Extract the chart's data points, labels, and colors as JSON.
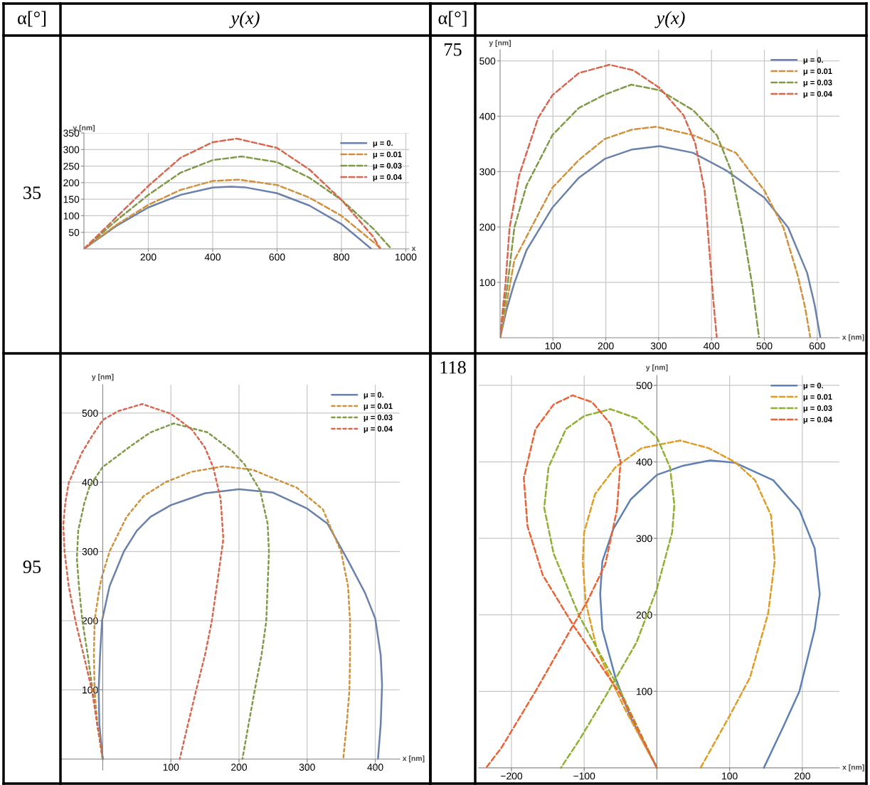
{
  "chart_data": [
    {
      "type": "line",
      "xlabel": "x",
      "ylabel": "y [nm]",
      "annotations": [
        "α[°]",
        "y(x)",
        "35"
      ],
      "xlim": [
        0,
        1010
      ],
      "ylim": [
        0,
        350
      ],
      "xticks": [
        200,
        400,
        600,
        800,
        1000
      ],
      "yticks": [
        50,
        100,
        150,
        200,
        250,
        300,
        350
      ],
      "grid": true,
      "legend": "top right",
      "series": [
        {
          "name": "μ = 0.",
          "color": "#6a82ab",
          "line_style": "solid",
          "x": [
            0,
            100,
            200,
            300,
            400,
            456,
            500,
            600,
            700,
            800,
            893
          ],
          "values": [
            0,
            69,
            125,
            163,
            185,
            188,
            186,
            168,
            131,
            75,
            0
          ]
        },
        {
          "name": "μ = 0.01",
          "color": "#d0913c",
          "line_style": "dashed",
          "x": [
            0,
            100,
            200,
            300,
            400,
            480,
            600,
            700,
            800,
            925
          ],
          "values": [
            0,
            72,
            133,
            178,
            205,
            209,
            193,
            155,
            100,
            0
          ]
        },
        {
          "name": "μ = 0.03",
          "color": "#7f9a48",
          "line_style": "dashed",
          "x": [
            0,
            100,
            200,
            300,
            400,
            490,
            600,
            700,
            800,
            900,
            955
          ],
          "values": [
            0,
            85,
            163,
            230,
            268,
            279,
            262,
            215,
            148,
            60,
            0
          ]
        },
        {
          "name": "μ = 0.04",
          "color": "#d9664f",
          "line_style": "dashed",
          "x": [
            0,
            100,
            200,
            300,
            400,
            475,
            600,
            700,
            800,
            900,
            920
          ],
          "values": [
            0,
            95,
            190,
            275,
            322,
            333,
            305,
            240,
            148,
            35,
            0
          ]
        }
      ]
    },
    {
      "type": "line",
      "xlabel": "x [nm]",
      "ylabel": "y [nm]",
      "annotations": [
        "α[°]",
        "y(x)",
        "75"
      ],
      "xlim": [
        0,
        642
      ],
      "ylim": [
        0,
        520
      ],
      "xticks": [
        100,
        200,
        300,
        400,
        500,
        600
      ],
      "yticks": [
        100,
        200,
        300,
        400,
        500
      ],
      "grid": true,
      "legend": "top right",
      "series": [
        {
          "name": "μ = 0.",
          "color": "#6a82ab",
          "line_style": "solid",
          "x": [
            0,
            12,
            27,
            50,
            99,
            149,
            198,
            250,
            302,
            365,
            428,
            500,
            545,
            581,
            595,
            606
          ],
          "values": [
            0,
            50,
            99,
            158,
            235,
            289,
            323,
            340,
            346,
            334,
            302,
            253,
            199,
            117,
            60,
            0
          ]
        },
        {
          "name": "μ = 0.01",
          "color": "#d0913c",
          "line_style": "dashed",
          "x": [
            0,
            10,
            27,
            59,
            99,
            149,
            198,
            250,
            295,
            365,
            446,
            500,
            536,
            563,
            577,
            587
          ],
          "values": [
            0,
            50,
            140,
            199,
            271,
            321,
            359,
            376,
            381,
            366,
            334,
            266,
            199,
            113,
            55,
            0
          ]
        },
        {
          "name": "μ = 0.03",
          "color": "#7f9a48",
          "line_style": "dashed",
          "x": [
            0,
            7,
            14,
            27,
            50,
            99,
            149,
            198,
            248,
            302,
            365,
            410,
            437,
            459,
            477,
            490
          ],
          "values": [
            0,
            50,
            95,
            199,
            275,
            366,
            415,
            439,
            457,
            447,
            411,
            366,
            302,
            199,
            95,
            0
          ]
        },
        {
          "name": "μ = 0.04",
          "color": "#d9664f",
          "line_style": "dashed",
          "x": [
            0,
            5,
            10,
            18,
            36,
            72,
            99,
            149,
            207,
            252,
            302,
            347,
            369,
            387,
            396,
            403,
            410
          ],
          "values": [
            0,
            50,
            95,
            199,
            293,
            397,
            438,
            478,
            493,
            483,
            451,
            402,
            352,
            266,
            158,
            72,
            0
          ]
        }
      ]
    },
    {
      "type": "line",
      "xlabel": "x [nm]",
      "ylabel": "y [nm]",
      "annotations": [
        "95"
      ],
      "xlim": [
        -60,
        436
      ],
      "ylim": [
        -16,
        541
      ],
      "xticks": [
        100,
        200,
        300,
        400
      ],
      "yticks": [
        100,
        200,
        300,
        400,
        500
      ],
      "grid": true,
      "legend": "top right",
      "series": [
        {
          "name": "μ = 0.",
          "color": "#6a82ab",
          "line_style": "solid",
          "x": [
            0,
            -5,
            -6,
            -4,
            -1,
            10,
            31,
            50,
            70,
            100,
            150,
            200,
            250,
            300,
            330,
            361,
            385,
            400,
            408,
            410,
            408,
            404
          ],
          "values": [
            0,
            50,
            100,
            150,
            200,
            250,
            300,
            330,
            350,
            367,
            384,
            390,
            385,
            362,
            340,
            285,
            240,
            203,
            150,
            107,
            50,
            0
          ]
        },
        {
          "name": "μ = 0.01",
          "color": "#d0913c",
          "line_style": "dotted",
          "x": [
            0,
            -8,
            -12,
            -13,
            -12,
            -6,
            -2,
            10,
            35,
            60,
            92,
            130,
            177,
            220,
            285,
            323,
            350,
            360,
            363,
            363,
            362,
            358,
            353
          ],
          "values": [
            0,
            50,
            100,
            150,
            200,
            240,
            261,
            300,
            350,
            380,
            400,
            415,
            423,
            418,
            392,
            361,
            299,
            250,
            199,
            150,
            99,
            50,
            0
          ]
        },
        {
          "name": "μ = 0.03",
          "color": "#7f9a48",
          "line_style": "dotted",
          "x": [
            0,
            -8,
            -15,
            -22,
            -30,
            -35,
            -38,
            -36,
            -27,
            -19,
            0,
            42,
            70,
            104,
            154,
            190,
            208,
            231,
            242,
            244,
            242,
            240,
            233,
            223,
            214,
            205
          ],
          "values": [
            0,
            50,
            100,
            150,
            200,
            250,
            290,
            330,
            370,
            395,
            422,
            453,
            472,
            485,
            472,
            445,
            426,
            388,
            340,
            299,
            250,
            199,
            150,
            99,
            50,
            0
          ]
        },
        {
          "name": "μ = 0.04",
          "color": "#d9664f",
          "line_style": "dotted",
          "x": [
            0,
            -8,
            -16,
            -28,
            -40,
            -50,
            -56,
            -58,
            -55,
            -50,
            -31,
            -15,
            0,
            23,
            58,
            100,
            131,
            150,
            162,
            173,
            177,
            169,
            160,
            150,
            137,
            125,
            113
          ],
          "values": [
            0,
            50,
            100,
            150,
            199,
            250,
            299,
            338,
            370,
            399,
            442,
            468,
            490,
            503,
            513,
            499,
            476,
            450,
            422,
            376,
            318,
            261,
            199,
            150,
            99,
            50,
            0
          ]
        }
      ]
    },
    {
      "type": "line",
      "xlabel": "x [nm]",
      "ylabel": "y [nm]",
      "annotations": [
        "118"
      ],
      "xlim": [
        -245,
        251
      ],
      "ylim": [
        -15,
        513
      ],
      "xticks": [
        {
          "value": -200,
          "label": "−200"
        },
        {
          "value": -100,
          "label": "−100"
        },
        100,
        200
      ],
      "yticks": [
        100,
        200,
        300,
        400,
        500
      ],
      "grid": true,
      "legend": "top right",
      "series": [
        {
          "name": "μ = 0.",
          "color": "#5e81b5",
          "line_style": "solid",
          "x": [
            0,
            -36,
            -57,
            -75,
            -78,
            -75,
            -60,
            -36,
            0,
            36,
            73,
            107,
            160,
            196,
            217,
            224,
            217,
            196,
            172,
            147
          ],
          "values": [
            0,
            65,
            118,
            181,
            227,
            270,
            312,
            351,
            383,
            395,
            402,
            399,
            376,
            337,
            287,
            227,
            181,
            100,
            50,
            0
          ]
        },
        {
          "name": "μ = 0.01",
          "color": "#e19c24",
          "line_style": "dashed",
          "x": [
            0,
            -43,
            -82,
            -98,
            -102,
            -100,
            -85,
            -57,
            -21,
            32,
            71,
            107,
            135,
            157,
            162,
            153,
            128,
            100,
            60
          ],
          "values": [
            0,
            75,
            153,
            217,
            270,
            308,
            358,
            393,
            418,
            428,
            418,
            400,
            376,
            330,
            270,
            202,
            118,
            68,
            0
          ]
        },
        {
          "name": "μ = 0.03",
          "color": "#8fb032",
          "line_style": "dashed",
          "x": [
            0,
            -50,
            -107,
            -142,
            -155,
            -149,
            -125,
            -100,
            -64,
            -28,
            0,
            18,
            24,
            21,
            0,
            -28,
            -71,
            -107,
            -132
          ],
          "values": [
            0,
            100,
            199,
            280,
            340,
            393,
            443,
            460,
            469,
            457,
            432,
            393,
            344,
            308,
            234,
            164,
            93,
            36,
            0
          ]
        },
        {
          "name": "μ = 0.04",
          "color": "#eb6235",
          "line_style": "dashed",
          "x": [
            0,
            -50,
            -114,
            -157,
            -178,
            -183,
            -167,
            -142,
            -116,
            -89,
            -64,
            -50,
            -55,
            -71,
            -96,
            -116,
            -167,
            -214,
            -235
          ],
          "values": [
            0,
            96,
            185,
            252,
            316,
            379,
            443,
            475,
            487,
            478,
            450,
            400,
            337,
            266,
            217,
            185,
            100,
            26,
            0
          ]
        }
      ]
    }
  ]
}
